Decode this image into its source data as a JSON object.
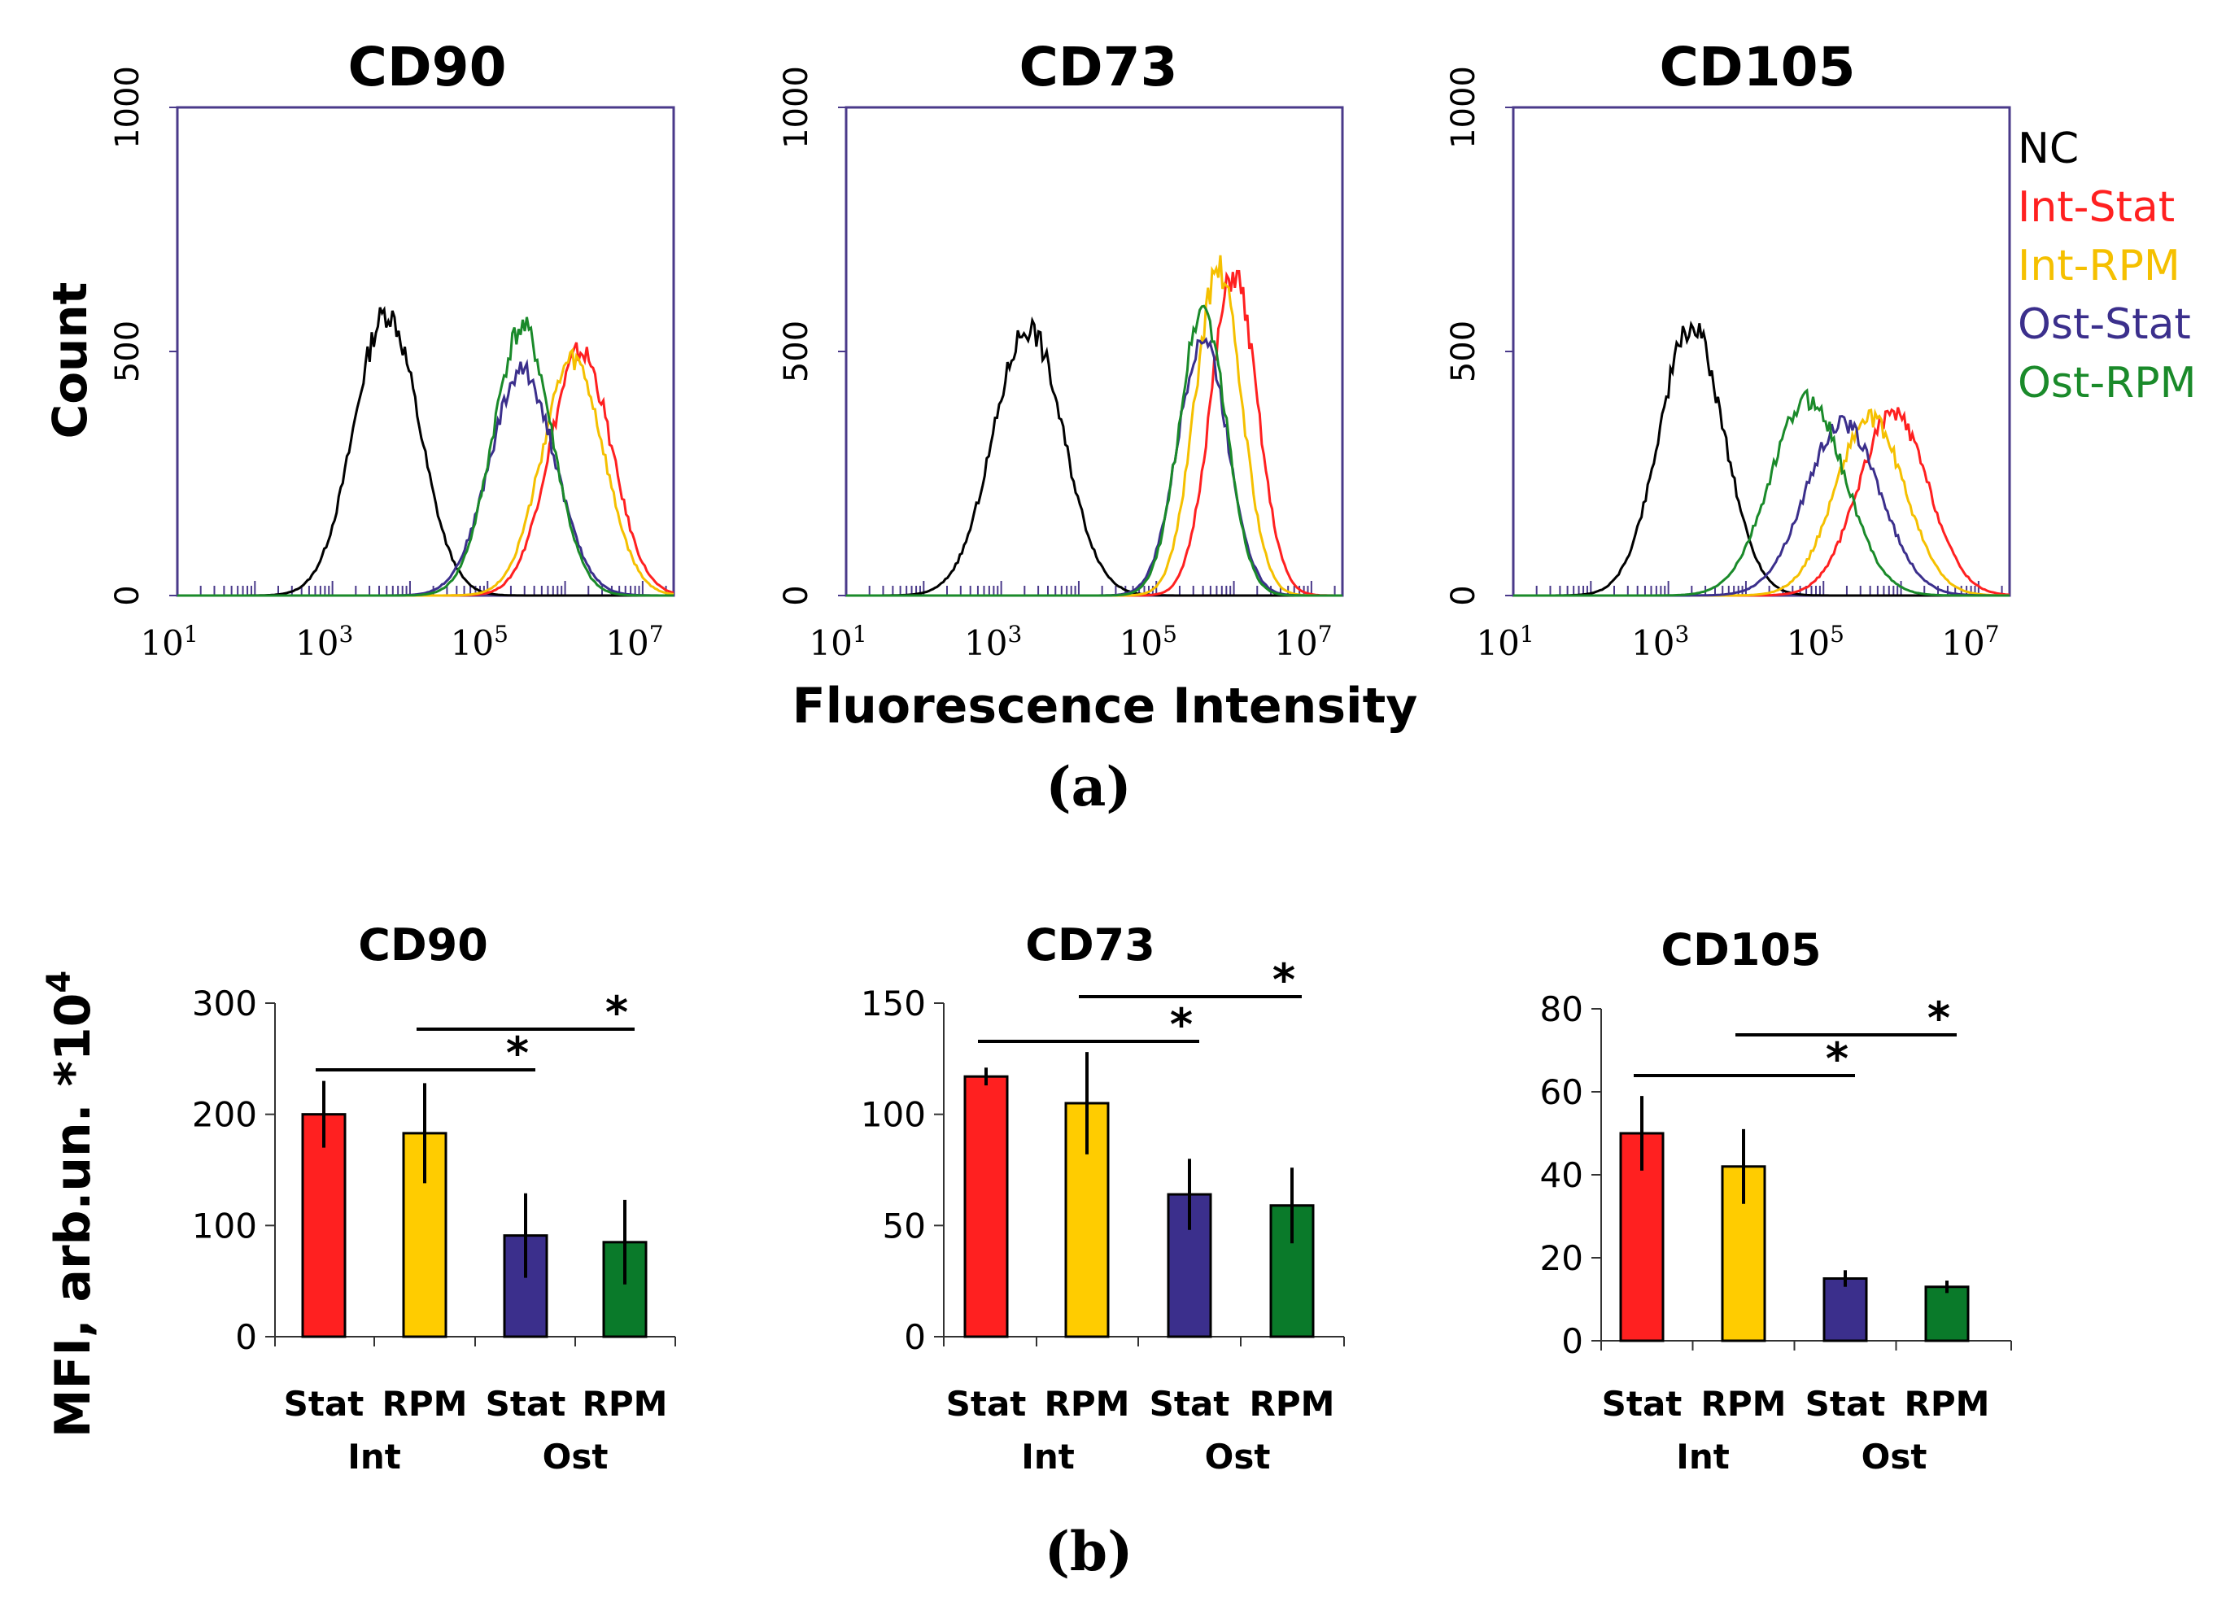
{
  "figure": {
    "panel_a_label": "(a)",
    "panel_b_label": "(b)",
    "hist_ylabel": "Count",
    "hist_xlabel": "Fluorescence Intensity",
    "bar_ylabel": "MFI, arb.un. *10",
    "bar_ylabel_sup": "4",
    "legend": [
      {
        "name": "NC",
        "color": "#000000"
      },
      {
        "name": "Int-Stat",
        "color": "#ff2020"
      },
      {
        "name": "Int-RPM",
        "color": "#f5c000"
      },
      {
        "name": "Ost-Stat",
        "color": "#3b2f8c"
      },
      {
        "name": "Ost-RPM",
        "color": "#1a8a2a"
      }
    ]
  },
  "chart_data": [
    {
      "type": "line",
      "title": "CD90",
      "xlabel": "Fluorescence Intensity",
      "ylabel": "Count",
      "x_scale": "log10",
      "xlim_log10": [
        1,
        7.4
      ],
      "ylim": [
        0,
        1000
      ],
      "y_ticks": [
        0,
        500,
        1000
      ],
      "x_ticks": [
        {
          "base": "10",
          "exp": "1"
        },
        {
          "base": "10",
          "exp": "3"
        },
        {
          "base": "10",
          "exp": "5"
        },
        {
          "base": "10",
          "exp": "7"
        }
      ],
      "series": [
        {
          "name": "NC",
          "color": "#000000",
          "peak_log10": 3.7,
          "peak": 590,
          "sigma": 0.42
        },
        {
          "name": "Int-Stat",
          "color": "#ff2020",
          "peak_log10": 6.2,
          "peak": 510,
          "sigma": 0.4
        },
        {
          "name": "Int-RPM",
          "color": "#f5c000",
          "peak_log10": 6.1,
          "peak": 490,
          "sigma": 0.4
        },
        {
          "name": "Ost-Stat",
          "color": "#3b2f8c",
          "peak_log10": 5.45,
          "peak": 470,
          "sigma": 0.42
        },
        {
          "name": "Ost-RPM",
          "color": "#1a8a2a",
          "peak_log10": 5.45,
          "peak": 560,
          "sigma": 0.38
        }
      ]
    },
    {
      "type": "line",
      "title": "CD73",
      "xlabel": "Fluorescence Intensity",
      "ylabel": "Count",
      "x_scale": "log10",
      "xlim_log10": [
        1,
        7.4
      ],
      "ylim": [
        0,
        1000
      ],
      "y_ticks": [
        0,
        500,
        1000
      ],
      "x_ticks": [
        {
          "base": "10",
          "exp": "1"
        },
        {
          "base": "10",
          "exp": "3"
        },
        {
          "base": "10",
          "exp": "5"
        },
        {
          "base": "10",
          "exp": "7"
        }
      ],
      "series": [
        {
          "name": "NC",
          "color": "#000000",
          "peak_log10": 3.35,
          "peak": 560,
          "sigma": 0.45
        },
        {
          "name": "Int-Stat",
          "color": "#ff2020",
          "peak_log10": 6.0,
          "peak": 670,
          "sigma": 0.3
        },
        {
          "name": "Int-RPM",
          "color": "#f5c000",
          "peak_log10": 5.8,
          "peak": 680,
          "sigma": 0.3
        },
        {
          "name": "Ost-Stat",
          "color": "#3b2f8c",
          "peak_log10": 5.6,
          "peak": 540,
          "sigma": 0.32
        },
        {
          "name": "Ost-RPM",
          "color": "#1a8a2a",
          "peak_log10": 5.6,
          "peak": 600,
          "sigma": 0.3
        }
      ]
    },
    {
      "type": "line",
      "title": "CD105",
      "xlabel": "Fluorescence Intensity",
      "ylabel": "Count",
      "x_scale": "log10",
      "xlim_log10": [
        1,
        7.4
      ],
      "ylim": [
        0,
        1000
      ],
      "y_ticks": [
        0,
        500,
        1000
      ],
      "x_ticks": [
        {
          "base": "10",
          "exp": "1"
        },
        {
          "base": "10",
          "exp": "3"
        },
        {
          "base": "10",
          "exp": "5"
        },
        {
          "base": "10",
          "exp": "7"
        }
      ],
      "series": [
        {
          "name": "NC",
          "color": "#000000",
          "peak_log10": 3.3,
          "peak": 560,
          "sigma": 0.42
        },
        {
          "name": "Int-Stat",
          "color": "#ff2020",
          "peak_log10": 5.9,
          "peak": 380,
          "sigma": 0.45
        },
        {
          "name": "Int-RPM",
          "color": "#f5c000",
          "peak_log10": 5.6,
          "peak": 370,
          "sigma": 0.45
        },
        {
          "name": "Ost-Stat",
          "color": "#3b2f8c",
          "peak_log10": 5.25,
          "peak": 360,
          "sigma": 0.48
        },
        {
          "name": "Ost-RPM",
          "color": "#1a8a2a",
          "peak_log10": 4.8,
          "peak": 410,
          "sigma": 0.48
        }
      ]
    },
    {
      "type": "bar",
      "title": "CD90",
      "ylabel": "MFI, arb.un. *10^4",
      "ylim": [
        0,
        300
      ],
      "y_ticks": [
        0,
        100,
        200,
        300
      ],
      "categories": [
        "Stat",
        "RPM",
        "Stat",
        "RPM"
      ],
      "groups": [
        "Int",
        "Ost"
      ],
      "values": [
        200,
        183,
        91,
        85
      ],
      "errors": [
        30,
        45,
        38,
        38
      ],
      "colors": [
        "#ff2020",
        "#ffcc00",
        "#3b2f8c",
        "#0a7a2a"
      ],
      "significance": [
        {
          "from": 0,
          "to": 2,
          "label": "*"
        },
        {
          "from": 1,
          "to": 3,
          "label": "*"
        }
      ]
    },
    {
      "type": "bar",
      "title": "CD73",
      "ylabel": "MFI, arb.un. *10^4",
      "ylim": [
        0,
        150
      ],
      "y_ticks": [
        0,
        50,
        100,
        150
      ],
      "categories": [
        "Stat",
        "RPM",
        "Stat",
        "RPM"
      ],
      "groups": [
        "Int",
        "Ost"
      ],
      "values": [
        117,
        105,
        64,
        59
      ],
      "errors": [
        4,
        23,
        16,
        17
      ],
      "colors": [
        "#ff2020",
        "#ffcc00",
        "#3b2f8c",
        "#0a7a2a"
      ],
      "significance": [
        {
          "from": 0,
          "to": 2,
          "label": "*"
        },
        {
          "from": 1,
          "to": 3,
          "label": "*"
        }
      ]
    },
    {
      "type": "bar",
      "title": "CD105",
      "ylabel": "MFI, arb.un. *10^4",
      "ylim": [
        0,
        80
      ],
      "y_ticks": [
        0,
        20,
        40,
        60,
        80
      ],
      "categories": [
        "Stat",
        "RPM",
        "Stat",
        "RPM"
      ],
      "groups": [
        "Int",
        "Ost"
      ],
      "values": [
        50,
        42,
        15,
        13
      ],
      "errors": [
        9,
        9,
        2,
        1.5
      ],
      "colors": [
        "#ff2020",
        "#ffcc00",
        "#3b2f8c",
        "#0a7a2a"
      ],
      "significance": [
        {
          "from": 0,
          "to": 2,
          "label": "*"
        },
        {
          "from": 1,
          "to": 3,
          "label": "*"
        }
      ]
    }
  ]
}
